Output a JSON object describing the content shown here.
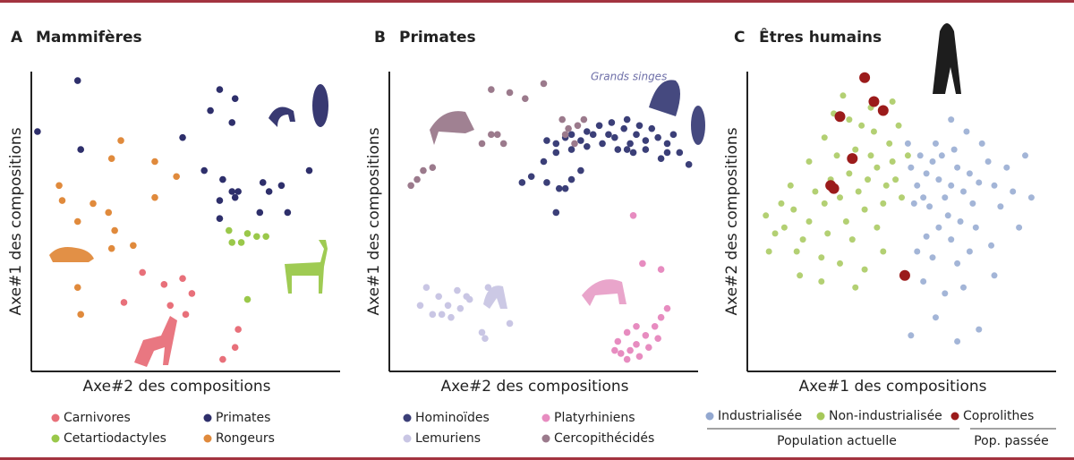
{
  "chart_data": [
    {
      "type": "scatter",
      "panel": "A",
      "title": "Mammifères",
      "x_label": "Axe#2 des compositions",
      "y_label": "Axe#1 des compositions",
      "xlim": [
        0,
        100
      ],
      "ylim": [
        0,
        100
      ],
      "series": [
        {
          "name": "Carnivores",
          "color": "#e8707a",
          "x": [
            36,
            43,
            49,
            52,
            30,
            45,
            50,
            67,
            66,
            62
          ],
          "y": [
            33,
            29,
            31,
            26,
            23,
            22,
            19,
            14,
            8,
            4
          ]
        },
        {
          "name": "Primates",
          "color": "#2e2f6b",
          "x": [
            2,
            15,
            16,
            61,
            66,
            58,
            65,
            49,
            56,
            62,
            67,
            75,
            81,
            90,
            61,
            66,
            77,
            83,
            61,
            74,
            65
          ],
          "y": [
            80,
            97,
            74,
            94,
            91,
            87,
            83,
            78,
            67,
            64,
            60,
            63,
            62,
            67,
            57,
            58,
            60,
            53,
            51,
            53,
            60
          ]
        },
        {
          "name": "Cetartiodactyles",
          "color": "#9ac84a",
          "x": [
            64,
            68,
            70,
            73,
            76,
            65,
            70
          ],
          "y": [
            47,
            43,
            46,
            45,
            45,
            43,
            24
          ]
        },
        {
          "name": "Rongeurs",
          "color": "#e08a3c",
          "x": [
            29,
            26,
            40,
            9,
            47,
            10,
            20,
            40,
            15,
            25,
            27,
            33,
            26,
            15,
            16
          ],
          "y": [
            77,
            71,
            70,
            62,
            65,
            57,
            56,
            58,
            50,
            53,
            47,
            42,
            41,
            28,
            19
          ]
        }
      ]
    },
    {
      "type": "scatter",
      "panel": "B",
      "title": "Primates",
      "x_label": "Axe#2 des compositions",
      "y_label": "Axe#1 des compositions",
      "annotation": "Grands singes",
      "xlim": [
        0,
        100
      ],
      "ylim": [
        0,
        100
      ],
      "series": [
        {
          "name": "Hominoïdes",
          "color": "#3b3f78",
          "x": [
            51,
            54,
            57,
            59,
            62,
            64,
            66,
            69,
            71,
            73,
            76,
            78,
            80,
            83,
            85,
            87,
            90,
            92,
            94,
            97,
            74,
            79,
            83,
            88,
            68,
            72,
            77,
            81,
            64,
            59,
            54,
            50,
            46,
            51,
            55,
            59,
            43,
            62,
            57,
            54,
            77,
            90
          ],
          "y": [
            77,
            76,
            78,
            79,
            77,
            80,
            79,
            76,
            79,
            78,
            81,
            76,
            79,
            77,
            81,
            78,
            76,
            79,
            73,
            69,
            74,
            73,
            74,
            71,
            82,
            83,
            84,
            82,
            75,
            74,
            73,
            70,
            65,
            63,
            61,
            64,
            63,
            67,
            61,
            53,
            74,
            73
          ]
        },
        {
          "name": "Platyrhiniens",
          "color": "#e78cc0",
          "x": [
            74,
            77,
            80,
            83,
            86,
            88,
            75,
            78,
            81,
            84,
            87,
            90,
            73,
            80,
            79,
            82,
            88,
            77
          ],
          "y": [
            10,
            13,
            9,
            12,
            15,
            18,
            6,
            7,
            5,
            8,
            11,
            21,
            7,
            15,
            52,
            36,
            34,
            4
          ]
        },
        {
          "name": "Lemuriens",
          "color": "#c9c6e4",
          "x": [
            12,
            16,
            19,
            22,
            25,
            17,
            20,
            23,
            26,
            14,
            10,
            30,
            31,
            39,
            32
          ],
          "y": [
            28,
            25,
            22,
            27,
            25,
            19,
            18,
            21,
            24,
            19,
            22,
            13,
            11,
            16,
            28
          ]
        },
        {
          "name": "Cercopithécidés",
          "color": "#9b7a8c",
          "x": [
            7,
            9,
            11,
            14,
            30,
            33,
            35,
            33,
            39,
            44,
            50,
            56,
            58,
            61,
            63,
            57,
            60,
            37
          ],
          "y": [
            62,
            64,
            67,
            68,
            76,
            79,
            79,
            94,
            93,
            91,
            96,
            84,
            81,
            82,
            84,
            79,
            76,
            76
          ]
        }
      ]
    },
    {
      "type": "scatter",
      "panel": "C",
      "title": "Êtres humains",
      "x_label": "Axe#1 des compositions",
      "y_label": "Axe#2 des compositions",
      "legend_groups": [
        "Population actuelle",
        "Pop. passée"
      ],
      "xlim": [
        0,
        100
      ],
      "ylim": [
        0,
        100
      ],
      "series": [
        {
          "name": "Industrialisée",
          "color": "#93a8d0",
          "x": [
            62,
            58,
            66,
            60,
            64,
            55,
            68,
            70,
            57,
            63,
            72,
            59,
            65,
            53,
            75,
            61,
            67,
            56,
            73,
            78,
            54,
            69,
            62,
            80,
            58,
            66,
            74,
            82,
            76,
            84,
            71,
            52,
            60,
            68,
            57,
            64,
            72,
            86,
            88,
            90,
            79,
            70,
            61,
            75,
            53,
            68,
            55,
            80,
            92,
            66
          ],
          "y": [
            64,
            66,
            62,
            70,
            58,
            62,
            68,
            60,
            58,
            72,
            66,
            55,
            52,
            68,
            63,
            76,
            74,
            72,
            56,
            70,
            56,
            50,
            48,
            62,
            45,
            44,
            48,
            55,
            76,
            68,
            80,
            76,
            38,
            36,
            30,
            26,
            40,
            60,
            48,
            72,
            42,
            28,
            18,
            14,
            12,
            10,
            40,
            32,
            58,
            84
          ]
        },
        {
          "name": "Non-industrialisée",
          "color": "#a6c85a",
          "x": [
            39,
            42,
            36,
            45,
            33,
            40,
            47,
            30,
            38,
            44,
            27,
            35,
            48,
            32,
            25,
            41,
            37,
            29,
            22,
            20,
            15,
            18,
            12,
            26,
            34,
            42,
            24,
            30,
            16,
            9,
            14,
            20,
            46,
            49,
            33,
            25,
            11,
            7,
            44,
            38,
            50,
            28,
            40,
            52,
            6,
            17,
            35,
            47,
            24,
            31
          ],
          "y": [
            64,
            68,
            60,
            62,
            66,
            72,
            70,
            58,
            54,
            56,
            64,
            74,
            64,
            50,
            56,
            80,
            82,
            72,
            60,
            50,
            54,
            44,
            48,
            46,
            44,
            48,
            38,
            36,
            40,
            46,
            62,
            70,
            76,
            82,
            84,
            78,
            56,
            40,
            40,
            34,
            58,
            86,
            88,
            72,
            52,
            32,
            28,
            90,
            30,
            92
          ]
        },
        {
          "name": "Coprolithes",
          "color": "#9b1b1b",
          "x": [
            38,
            41,
            44,
            30,
            34,
            27,
            28,
            51
          ],
          "y": [
            98,
            90,
            87,
            85,
            71,
            62,
            61,
            32
          ]
        }
      ]
    }
  ]
}
